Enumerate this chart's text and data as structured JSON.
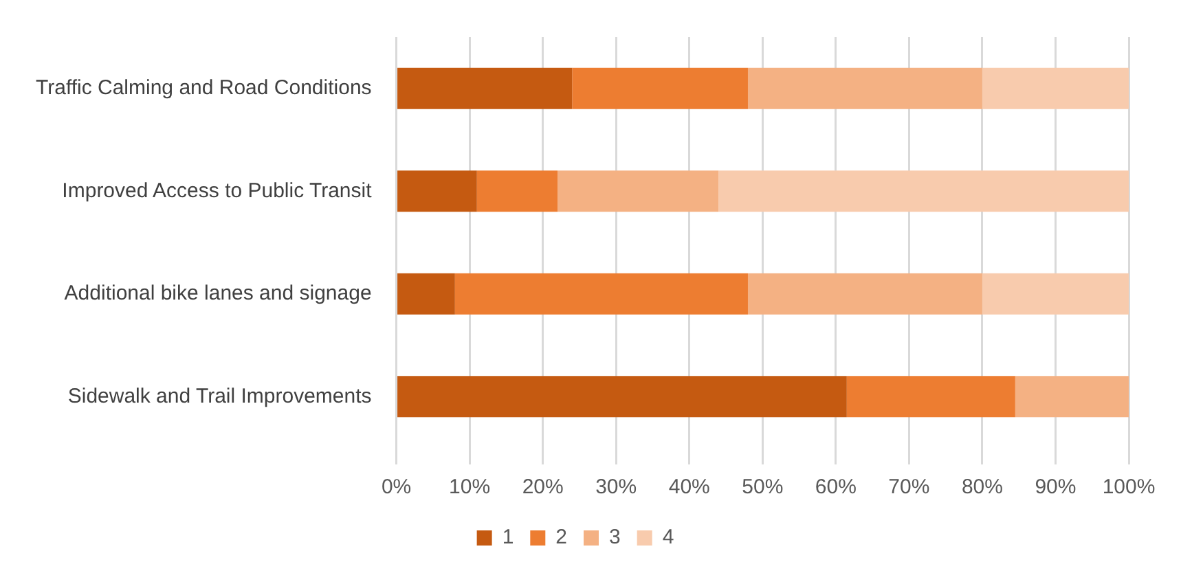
{
  "chart_data": {
    "type": "bar",
    "orientation": "horizontal",
    "stacked": true,
    "categories": [
      "Traffic Calming and Road Conditions",
      "Improved Access to Public Transit",
      "Additional bike lanes and signage",
      "Sidewalk and Trail Improvements"
    ],
    "series": [
      {
        "name": "1",
        "color": "#c55a11",
        "values": [
          24,
          11,
          8,
          61.5
        ]
      },
      {
        "name": "2",
        "color": "#ed7d31",
        "values": [
          24,
          11,
          40,
          23
        ]
      },
      {
        "name": "3",
        "color": "#f4b183",
        "values": [
          32,
          22,
          32,
          15.5
        ]
      },
      {
        "name": "4",
        "color": "#f8cbad",
        "values": [
          20,
          56,
          20,
          0
        ]
      }
    ],
    "xlim": [
      0,
      100
    ],
    "xticks": [
      {
        "value": 0,
        "label": "0%"
      },
      {
        "value": 10,
        "label": "10%"
      },
      {
        "value": 20,
        "label": "20%"
      },
      {
        "value": 30,
        "label": "30%"
      },
      {
        "value": 40,
        "label": "40%"
      },
      {
        "value": 50,
        "label": "50%"
      },
      {
        "value": 60,
        "label": "60%"
      },
      {
        "value": 70,
        "label": "70%"
      },
      {
        "value": 80,
        "label": "80%"
      },
      {
        "value": 90,
        "label": "90%"
      },
      {
        "value": 100,
        "label": "100%"
      }
    ],
    "grid": "x",
    "legend": "bottom"
  }
}
